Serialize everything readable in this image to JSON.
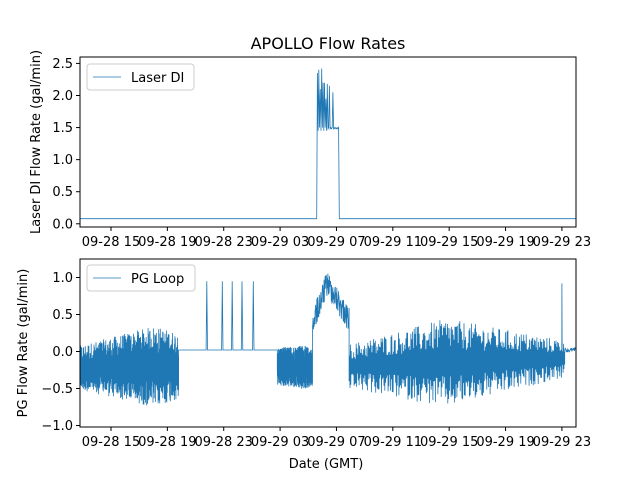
{
  "chart_data": {
    "title": "APOLLO Flow Rates",
    "xlabel": "Date (GMT)",
    "x_tick_labels": [
      "09-28 15",
      "09-28 19",
      "09-28 23",
      "09-29 03",
      "09-29 07",
      "09-29 11",
      "09-29 15",
      "09-29 19",
      "09-29 23"
    ],
    "x_tick_hours": [
      15,
      19,
      23,
      27,
      31,
      35,
      39,
      43,
      47
    ],
    "x_range_hours": [
      12.8,
      48.0
    ],
    "color": "#1f77b4",
    "panels": [
      {
        "type": "line",
        "ylabel": "Laser DI Flow Rate (gal/min)",
        "legend": "Laser DI",
        "legend_position": "upper-left",
        "ylim": [
          -0.05,
          2.6
        ],
        "yticks": [
          0.0,
          0.5,
          1.0,
          1.5,
          2.0,
          2.5
        ],
        "ytick_labels": [
          "0.0",
          "0.5",
          "1.0",
          "1.5",
          "2.0",
          "2.5"
        ],
        "series": {
          "hours": [
            12.8,
            29.6,
            29.65,
            29.7,
            29.75,
            29.8,
            29.85,
            29.9,
            29.95,
            30.0,
            30.05,
            30.1,
            30.15,
            30.2,
            30.25,
            30.3,
            30.35,
            30.4,
            30.45,
            30.5,
            30.55,
            30.6,
            30.65,
            30.7,
            30.75,
            30.8,
            30.85,
            30.9,
            30.95,
            31.0,
            31.05,
            31.1,
            31.15,
            31.2,
            31.25,
            31.3,
            31.35,
            48.0
          ],
          "values": [
            0.08,
            0.08,
            2.35,
            1.45,
            2.4,
            1.5,
            2.1,
            1.45,
            2.42,
            1.5,
            2.2,
            1.45,
            2.2,
            1.5,
            1.95,
            1.45,
            2.18,
            1.48,
            1.5,
            2.15,
            1.48,
            1.5,
            1.48,
            1.5,
            2.05,
            1.48,
            1.5,
            1.48,
            1.5,
            1.48,
            1.5,
            1.48,
            1.5,
            0.08,
            0.08,
            0.08,
            0.08,
            0.08
          ]
        }
      },
      {
        "type": "line",
        "ylabel": "PG Flow Rate (gal/min)",
        "legend": "PG Loop",
        "legend_position": "upper-left",
        "ylim": [
          -1.02,
          1.25
        ],
        "yticks": [
          -1.0,
          -0.5,
          0.0,
          0.5,
          1.0
        ],
        "ytick_labels": [
          "−1.0",
          "−0.5",
          "0.0",
          "0.5",
          "1.0"
        ],
        "flat_baseline": 0.02,
        "spikes": [
          {
            "hour": 21.8,
            "value": 0.95
          },
          {
            "hour": 22.9,
            "value": 0.95
          },
          {
            "hour": 23.6,
            "value": 0.95
          },
          {
            "hour": 24.3,
            "value": 0.95
          },
          {
            "hour": 25.1,
            "value": 0.95
          }
        ],
        "noise_segments": [
          {
            "start": 12.8,
            "end": 19.8,
            "center_start": -0.22,
            "center_end": -0.2,
            "amp_start": 0.3,
            "amp_end": 0.45,
            "amp_peak": 0.55
          },
          {
            "start": 26.8,
            "end": 29.3,
            "center_start": -0.2,
            "center_end": -0.22,
            "amp_start": 0.25,
            "amp_end": 0.25,
            "amp_peak": 0.3
          },
          {
            "start": 31.9,
            "end": 47.2,
            "center_start": -0.2,
            "center_end": -0.1,
            "amp_start": 0.3,
            "amp_end": 0.25,
            "amp_peak": 0.6
          }
        ],
        "elevated_segment": {
          "start": 29.3,
          "end": 31.9,
          "level_start": 0.55,
          "level_peak": 1.1,
          "level_end": 0.6
        },
        "late_spike": {
          "hour": 47.0,
          "value": 0.92
        },
        "tail": {
          "start": 47.2,
          "end": 48.0,
          "value": 0.02
        }
      }
    ]
  }
}
